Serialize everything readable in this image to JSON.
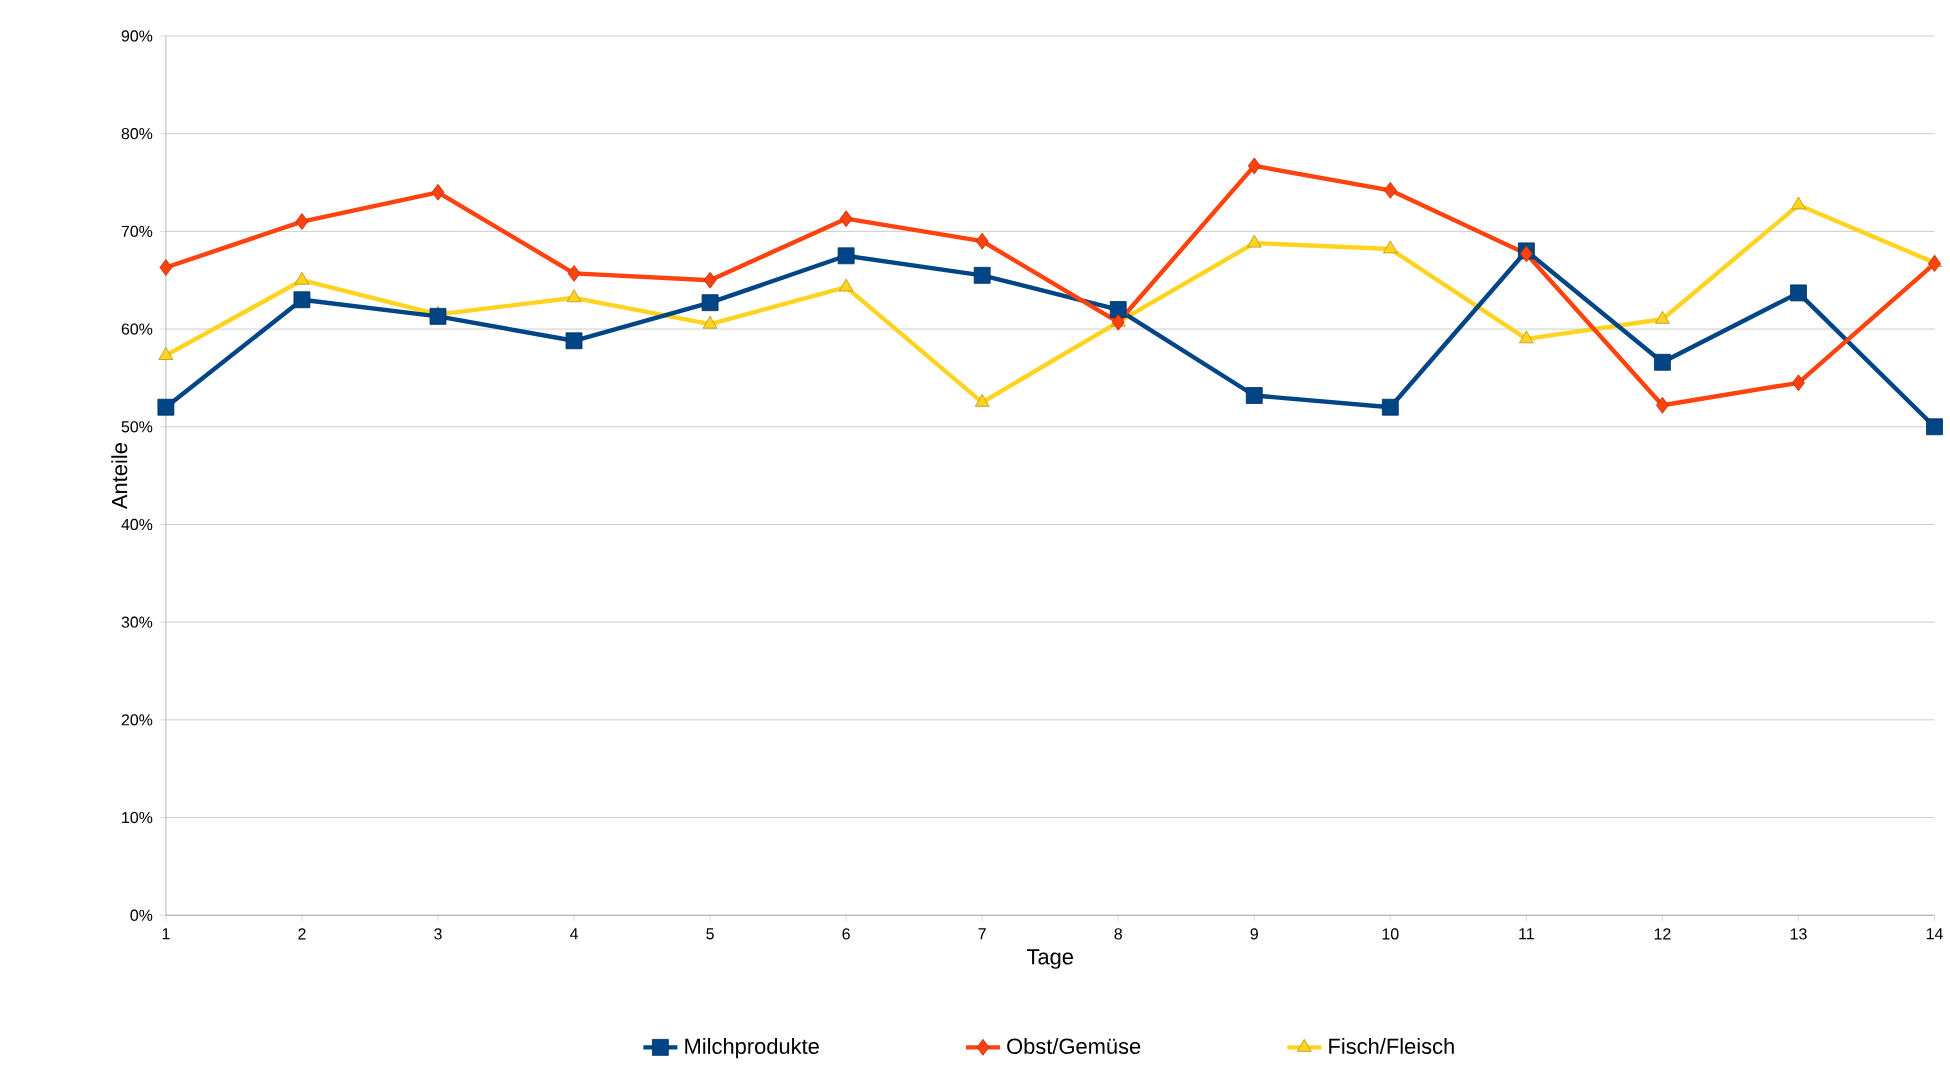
{
  "chart_data": {
    "type": "line",
    "xlabel": "Tage",
    "ylabel": "Anteile",
    "x": [
      1,
      2,
      3,
      4,
      5,
      6,
      7,
      8,
      9,
      10,
      11,
      12,
      13,
      14
    ],
    "xlim": [
      1,
      14
    ],
    "xticks": [
      1,
      2,
      3,
      4,
      5,
      6,
      7,
      8,
      9,
      10,
      11,
      12,
      13,
      14
    ],
    "ylim": [
      0,
      90
    ],
    "yticks": [
      {
        "value": 0,
        "label": "0%"
      },
      {
        "value": 10,
        "label": "10%"
      },
      {
        "value": 20,
        "label": "20%"
      },
      {
        "value": 30,
        "label": "30%"
      },
      {
        "value": 40,
        "label": "40%"
      },
      {
        "value": 50,
        "label": "50%"
      },
      {
        "value": 60,
        "label": "60%"
      },
      {
        "value": 70,
        "label": "70%"
      },
      {
        "value": 80,
        "label": "80%"
      },
      {
        "value": 90,
        "label": "90%"
      }
    ],
    "grid": "y",
    "legend": "bottom",
    "series": [
      {
        "name": "Milchprodukte",
        "color": "#004586",
        "marker": "square",
        "values": [
          52,
          63,
          61.3,
          58.8,
          62.7,
          67.5,
          65.5,
          62,
          53.2,
          52,
          68,
          56.6,
          63.7,
          50
        ]
      },
      {
        "name": "Obst/Gemüse",
        "color": "#ff420e",
        "marker": "diamond",
        "values": [
          66.3,
          71,
          74,
          65.7,
          65,
          71.3,
          69,
          60.7,
          76.7,
          74.2,
          67.7,
          52.2,
          54.5,
          66.7
        ]
      },
      {
        "name": "Fisch/Fleisch",
        "color": "#ffd320",
        "marker": "triangle",
        "values": [
          57.3,
          65,
          61.5,
          63.2,
          60.5,
          64.3,
          52.5,
          60.7,
          68.8,
          68.2,
          59,
          61,
          72.7,
          66.8
        ]
      }
    ]
  }
}
